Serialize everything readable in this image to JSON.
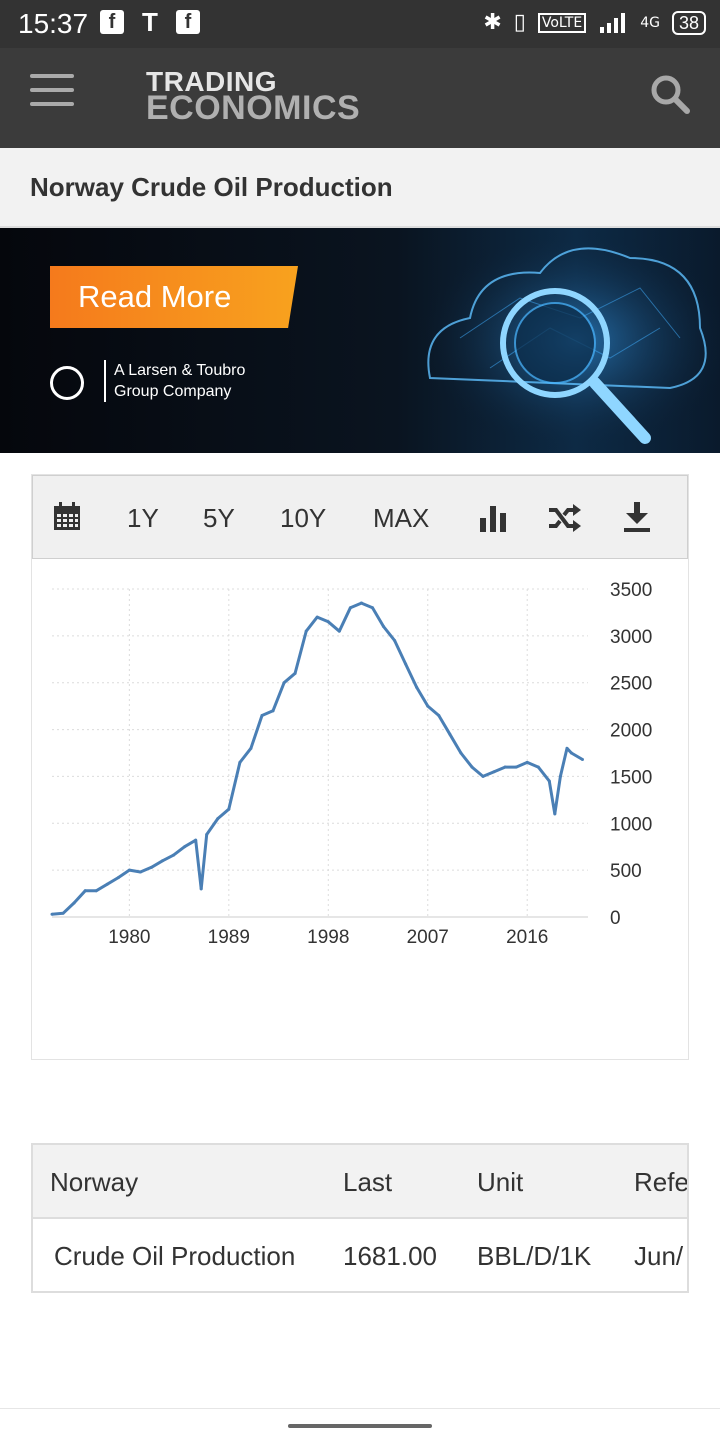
{
  "status_bar": {
    "time": "15:37",
    "left_icons": [
      "facebook-icon",
      "tesla-icon",
      "facebook-icon"
    ],
    "right_icons": [
      "bluetooth-icon",
      "vibrate-icon",
      "volte-icon",
      "signal-icon"
    ],
    "network": "4G",
    "battery": "38"
  },
  "header": {
    "brand_line1": "TRADING",
    "brand_line2": "ECONOMICS"
  },
  "page": {
    "title": "Norway Crude Oil Production"
  },
  "ad": {
    "cta": "Read More",
    "sponsor_line1": "A Larsen & Toubro",
    "sponsor_line2": "Group Company"
  },
  "chart_toolbar": {
    "items": [
      {
        "name": "calendar-icon"
      },
      {
        "label": "1Y"
      },
      {
        "label": "5Y"
      },
      {
        "label": "10Y"
      },
      {
        "label": "MAX"
      },
      {
        "name": "bar-chart-icon"
      },
      {
        "name": "shuffle-icon"
      },
      {
        "name": "download-icon"
      }
    ]
  },
  "chart_data": {
    "type": "line",
    "title": "",
    "xlabel": "",
    "ylabel": "",
    "x_ticks": [
      "1980",
      "1989",
      "1998",
      "2007",
      "2016"
    ],
    "y_ticks": [
      "0",
      "500",
      "1000",
      "1500",
      "2000",
      "2500",
      "3000",
      "3500"
    ],
    "xlim": [
      1973,
      2021.5
    ],
    "ylim": [
      0,
      3500
    ],
    "grid": true,
    "color": "#4a7fb5",
    "series": [
      {
        "x": [
          1973,
          1974,
          1975,
          1976,
          1977,
          1978,
          1979,
          1980,
          1981,
          1982,
          1983,
          1984,
          1985,
          1986,
          1986.5,
          1987,
          1988,
          1989,
          1990,
          1991,
          1992,
          1993,
          1994,
          1995,
          1996,
          1997,
          1998,
          1999,
          2000,
          2001,
          2002,
          2003,
          2004,
          2005,
          2006,
          2007,
          2008,
          2009,
          2010,
          2011,
          2012,
          2013,
          2014,
          2015,
          2016,
          2017,
          2018,
          2018.5,
          2019,
          2019.6,
          2020,
          2021
        ],
        "y": [
          30,
          40,
          150,
          280,
          280,
          350,
          420,
          500,
          480,
          530,
          600,
          660,
          750,
          820,
          300,
          880,
          1050,
          1150,
          1650,
          1800,
          2150,
          2200,
          2500,
          2600,
          3050,
          3200,
          3150,
          3050,
          3300,
          3350,
          3300,
          3100,
          2950,
          2700,
          2450,
          2250,
          2150,
          1950,
          1750,
          1600,
          1500,
          1550,
          1600,
          1600,
          1650,
          1600,
          1450,
          1100,
          1500,
          1800,
          1750,
          1681
        ]
      }
    ]
  },
  "table": {
    "headers": [
      "Norway",
      "Last",
      "Unit",
      "Refe"
    ],
    "row": [
      "Crude Oil Production",
      "1681.00",
      "BBL/D/1K",
      "Jun/"
    ]
  }
}
